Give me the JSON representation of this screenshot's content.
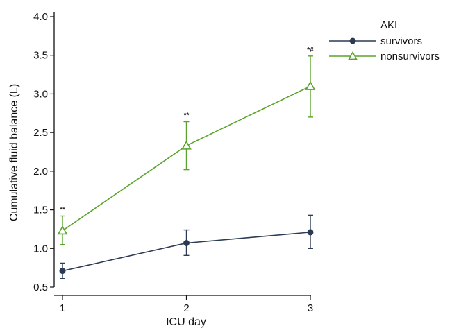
{
  "chart_data": {
    "type": "line",
    "xlabel": "ICU day",
    "ylabel": "Cumulative fluid balance (L)",
    "x": [
      1,
      2,
      3
    ],
    "xlim": [
      1,
      3
    ],
    "ylim": [
      0.5,
      4.0
    ],
    "yticks": [
      "0.5",
      "1.0",
      "1.5",
      "2.0",
      "2.5",
      "3.0",
      "3.5",
      "4.0"
    ],
    "xticks": [
      "1",
      "2",
      "3"
    ],
    "grid": false,
    "legend": {
      "title": "AKI",
      "position": "top-right, outside plot"
    },
    "series": [
      {
        "name": "survivors",
        "color": "#2b3a55",
        "marker": "circle",
        "values": [
          0.71,
          1.07,
          1.21
        ],
        "lower": [
          0.61,
          0.91,
          1.0
        ],
        "upper": [
          0.81,
          1.24,
          1.43
        ]
      },
      {
        "name": "nonsurvivors",
        "color": "#5aa32c",
        "marker": "triangle",
        "values": [
          1.23,
          2.33,
          3.1
        ],
        "lower": [
          1.05,
          2.02,
          2.7
        ],
        "upper": [
          1.42,
          2.64,
          3.49
        ]
      }
    ],
    "annotations": [
      {
        "x": 1,
        "y": 1.42,
        "text": "**"
      },
      {
        "x": 2,
        "y": 2.64,
        "text": "**"
      },
      {
        "x": 3,
        "y": 3.49,
        "text": "*#"
      }
    ]
  }
}
